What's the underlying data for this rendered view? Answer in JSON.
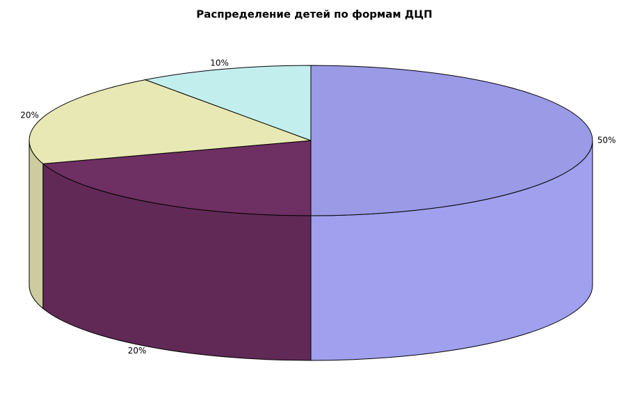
{
  "chart_data": {
    "type": "pie3d",
    "title": "Распределение детей по формам ДЦП",
    "values": [
      50,
      20,
      20,
      10
    ],
    "value_labels": [
      "50%",
      "20%",
      "20%",
      "10%"
    ],
    "colors": [
      "#9a9ae6",
      "#6e2f62",
      "#e8e8b4",
      "#c2eeee"
    ]
  }
}
